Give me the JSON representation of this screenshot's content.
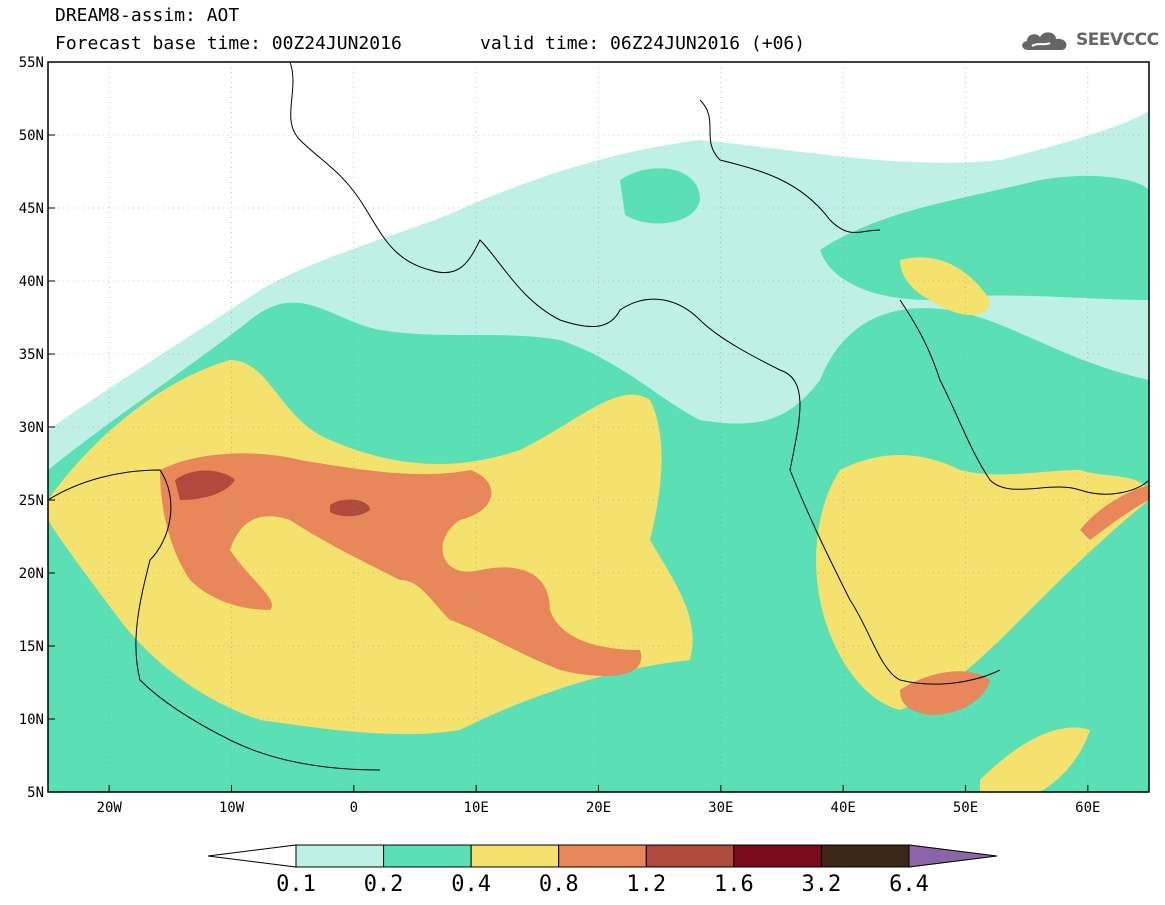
{
  "header": {
    "model_line": "DREAM8-assim: AOT",
    "base_time": "Forecast base time: 00Z24JUN2016",
    "valid_time": "valid time: 06Z24JUN2016 (+06)",
    "logo": "SEEVCCC"
  },
  "map": {
    "lon_range": [
      -25,
      65
    ],
    "lat_range": [
      5,
      55
    ],
    "lon_ticks": [
      {
        "value": -20,
        "label": "20W"
      },
      {
        "value": -10,
        "label": "10W"
      },
      {
        "value": 0,
        "label": "0"
      },
      {
        "value": 10,
        "label": "10E"
      },
      {
        "value": 20,
        "label": "20E"
      },
      {
        "value": 30,
        "label": "30E"
      },
      {
        "value": 40,
        "label": "40E"
      },
      {
        "value": 50,
        "label": "50E"
      },
      {
        "value": 60,
        "label": "60E"
      }
    ],
    "lat_ticks": [
      {
        "value": 55,
        "label": "55N"
      },
      {
        "value": 50,
        "label": "50N"
      },
      {
        "value": 45,
        "label": "45N"
      },
      {
        "value": 40,
        "label": "40N"
      },
      {
        "value": 35,
        "label": "35N"
      },
      {
        "value": 30,
        "label": "30N"
      },
      {
        "value": 25,
        "label": "25N"
      },
      {
        "value": 20,
        "label": "20N"
      },
      {
        "value": 15,
        "label": "15N"
      },
      {
        "value": 10,
        "label": "10N"
      },
      {
        "value": 5,
        "label": "5N"
      }
    ],
    "grid": true
  },
  "colorbar": {
    "levels": [
      "0.1",
      "0.2",
      "0.4",
      "0.8",
      "1.2",
      "1.6",
      "3.2",
      "6.4"
    ],
    "colors": [
      "#ffffff",
      "#bff0e6",
      "#5ae0b4",
      "#f5e16e",
      "#e8875a",
      "#b04a3c",
      "#7a0a1e",
      "#3c2614",
      "#8c64aa"
    ]
  },
  "colors": {
    "very_light": "#bff0e6",
    "light": "#5ae0b4",
    "moderate": "#f5e16e",
    "high": "#e8875a",
    "very_high": "#b04a3c"
  }
}
